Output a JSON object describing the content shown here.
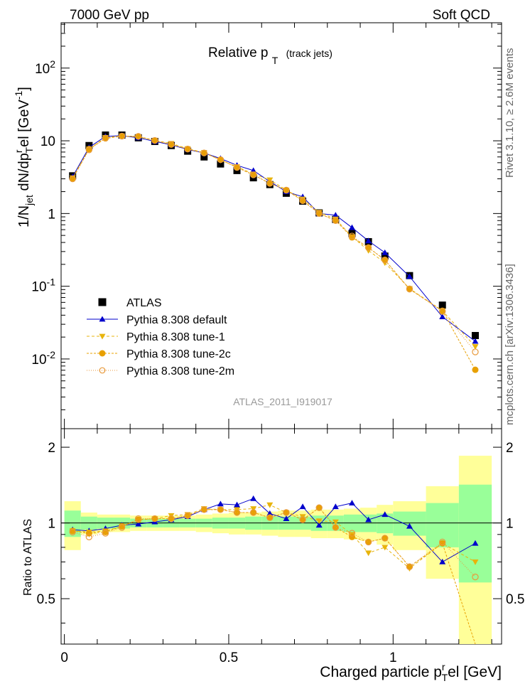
{
  "header": {
    "left": "7000 GeV pp",
    "right": "Soft QCD",
    "plot_title_main": "Relative p",
    "plot_title_sub": "T",
    "plot_title_suffix": "(track jets)",
    "side_top": "Rivet 3.1.10, ≥ 2.6M events",
    "side_bottom": "mcplots.cern.ch [arXiv:1306.3436]",
    "analysis": "ATLAS_2011_I919017"
  },
  "axes": {
    "ylabel_main": "1/N_jet dN/dp_T^rel [GeV^-1]",
    "ylabel_ratio": "Ratio to ATLAS",
    "xlabel": "Charged particle p_T^rel [GeV]",
    "main_ytick_labels": [
      "10^-2",
      "10^-1",
      "1",
      "10",
      "10^2"
    ],
    "ratio_ytick_labels": [
      "0.5",
      "1",
      "2"
    ],
    "xtick_labels": [
      "0",
      "0.5",
      "1"
    ]
  },
  "legend": [
    {
      "label": "ATLAS",
      "color": "#000000",
      "marker": "square"
    },
    {
      "label": "Pythia 8.308 default",
      "color": "#0000cc",
      "marker": "triangle-up"
    },
    {
      "label": "Pythia 8.308 tune-1",
      "color": "#e8b40c",
      "marker": "triangle-down"
    },
    {
      "label": "Pythia 8.308 tune-2c",
      "color": "#e8a000",
      "marker": "circle"
    },
    {
      "label": "Pythia 8.308 tune-2m",
      "color": "#e89a3c",
      "marker": "open-circle"
    }
  ],
  "chart_data": {
    "type": "scatter",
    "x_scale": "linear",
    "y_scale": "log",
    "xlim": [
      -0.01,
      1.33
    ],
    "ylim": [
      0.0011,
      420
    ],
    "ratio_ylim": [
      0.33,
      2.37
    ],
    "x": [
      0.025,
      0.075,
      0.125,
      0.175,
      0.225,
      0.275,
      0.325,
      0.375,
      0.425,
      0.475,
      0.525,
      0.575,
      0.625,
      0.675,
      0.725,
      0.775,
      0.825,
      0.875,
      0.925,
      0.975,
      1.05,
      1.15,
      1.25
    ],
    "series": [
      {
        "name": "ATLAS",
        "values": [
          3.3,
          8.6,
          12.0,
          12.0,
          11.0,
          9.8,
          8.6,
          7.2,
          6.0,
          4.8,
          3.9,
          3.1,
          2.5,
          1.9,
          1.48,
          1.02,
          0.83,
          0.53,
          0.41,
          0.26,
          0.14,
          0.055,
          0.021
        ]
      },
      {
        "name": "Pythia 8.308 default",
        "values": [
          3.2,
          8.1,
          11.5,
          11.8,
          11.0,
          9.8,
          8.8,
          7.6,
          6.8,
          5.7,
          4.6,
          3.9,
          2.75,
          2.0,
          1.7,
          1.0,
          0.95,
          0.64,
          0.42,
          0.29,
          0.136,
          0.038,
          0.0175
        ]
      },
      {
        "name": "Pythia 8.308 tune-1",
        "values": [
          3.1,
          7.7,
          11.1,
          11.7,
          11.3,
          10.1,
          9.2,
          7.8,
          6.9,
          5.4,
          4.4,
          3.5,
          2.9,
          2.1,
          1.58,
          1.04,
          0.84,
          0.48,
          0.31,
          0.21,
          0.093,
          0.046,
          0.0148
        ]
      },
      {
        "name": "Pythia 8.308 tune-2c",
        "values": [
          3.0,
          7.7,
          10.8,
          11.6,
          11.5,
          10.1,
          8.9,
          7.7,
          6.8,
          5.5,
          4.3,
          3.4,
          2.6,
          2.1,
          1.5,
          1.0,
          0.8,
          0.47,
          0.34,
          0.23,
          0.091,
          0.046,
          0.0071
        ]
      },
      {
        "name": "Pythia 8.308 tune-2m",
        "values": [
          3.0,
          7.5,
          10.9,
          11.6,
          11.5,
          10.1,
          8.9,
          7.7,
          6.8,
          5.5,
          4.3,
          3.4,
          2.6,
          2.1,
          1.5,
          1.0,
          0.8,
          0.49,
          0.34,
          0.23,
          0.092,
          0.045,
          0.0125
        ]
      }
    ],
    "ratio": {
      "Pythia 8.308 default": [
        0.94,
        0.93,
        0.95,
        0.98,
        0.99,
        1.01,
        1.03,
        1.06,
        1.13,
        1.19,
        1.18,
        1.25,
        1.09,
        1.04,
        1.16,
        0.98,
        1.16,
        1.2,
        1.03,
        1.08,
        0.97,
        0.7,
        0.83
      ],
      "Pythia 8.308 tune-1": [
        0.93,
        0.92,
        0.93,
        0.97,
        1.03,
        1.04,
        1.07,
        1.08,
        1.14,
        1.13,
        1.13,
        1.14,
        1.18,
        1.1,
        1.06,
        1.02,
        1.01,
        0.9,
        0.76,
        0.8,
        0.66,
        0.83,
        0.7
      ],
      "Pythia 8.308 tune-2c": [
        0.93,
        0.91,
        0.92,
        0.97,
        1.03,
        1.04,
        1.04,
        1.07,
        1.13,
        1.13,
        1.1,
        1.1,
        1.05,
        1.1,
        1.03,
        1.15,
        0.96,
        0.88,
        0.84,
        0.87,
        0.67,
        0.83,
        0.3
      ],
      "Pythia 8.308 tune-2m": [
        0.92,
        0.88,
        0.91,
        0.96,
        1.04,
        1.04,
        1.04,
        1.07,
        1.13,
        1.13,
        1.1,
        1.1,
        1.05,
        1.1,
        1.03,
        1.15,
        0.96,
        0.91,
        0.84,
        0.87,
        0.67,
        0.84,
        0.61
      ]
    },
    "ratio_error_bands": {
      "x_edges": [
        0.0,
        0.05,
        0.1,
        0.15,
        0.2,
        0.25,
        0.3,
        0.35,
        0.4,
        0.45,
        0.5,
        0.55,
        0.6,
        0.65,
        0.7,
        0.75,
        0.8,
        0.85,
        0.9,
        0.95,
        1.0,
        1.1,
        1.2,
        1.3
      ],
      "inner_half_width": [
        0.12,
        0.06,
        0.05,
        0.05,
        0.04,
        0.04,
        0.04,
        0.04,
        0.04,
        0.05,
        0.05,
        0.06,
        0.06,
        0.06,
        0.06,
        0.07,
        0.07,
        0.08,
        0.08,
        0.09,
        0.11,
        0.2,
        0.42
      ],
      "outer_half_width": [
        0.22,
        0.1,
        0.08,
        0.08,
        0.07,
        0.07,
        0.07,
        0.07,
        0.08,
        0.09,
        0.1,
        0.1,
        0.11,
        0.12,
        0.12,
        0.13,
        0.13,
        0.14,
        0.15,
        0.18,
        0.22,
        0.4,
        0.85
      ]
    },
    "colors": {
      "ATLAS": "#000000",
      "Pythia 8.308 default": "#0000cc",
      "Pythia 8.308 tune-1": "#e8b40c",
      "Pythia 8.308 tune-2c": "#e8a000",
      "Pythia 8.308 tune-2m": "#e89a3c",
      "band_inner": "#99ff99",
      "band_outer": "#ffff99"
    }
  }
}
